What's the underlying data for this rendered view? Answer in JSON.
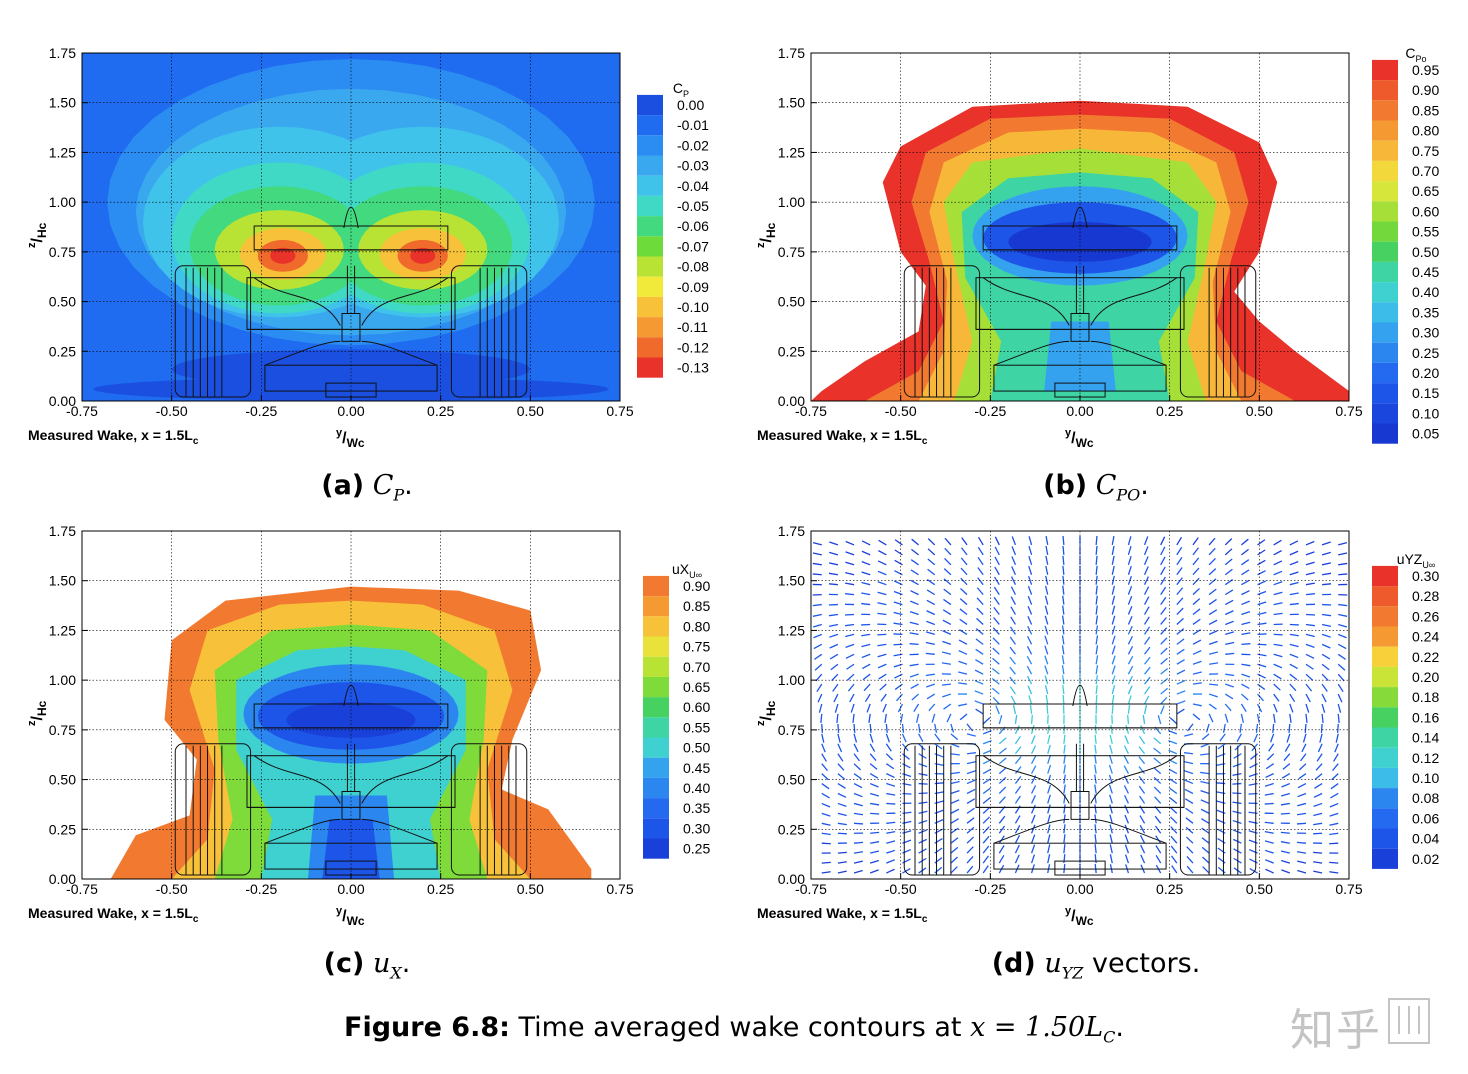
{
  "axes": {
    "x_ticks": [
      "-0.75",
      "-0.50",
      "-0.25",
      "0.00",
      "0.25",
      "0.50",
      "0.75"
    ],
    "y_ticks": [
      "0.00",
      "0.25",
      "0.50",
      "0.75",
      "1.00",
      "1.25",
      "1.50",
      "1.75"
    ],
    "xlabel_main": "y",
    "xlabel_sub": "Wc",
    "ylabel_main": "z",
    "ylabel_sub": "Hc",
    "note_main": "Measured Wake, x = 1.5L",
    "note_sub": "c"
  },
  "panels": [
    {
      "id": "a",
      "caption_label": "(a)",
      "caption_math": "C",
      "caption_math_sub": "P",
      "caption_suffix": "."
    },
    {
      "id": "b",
      "caption_label": "(b)",
      "caption_math": "C",
      "caption_math_sub": "PO",
      "caption_suffix": "."
    },
    {
      "id": "c",
      "caption_label": "(c)",
      "caption_math": "u",
      "caption_math_sub": "X",
      "caption_suffix": "."
    },
    {
      "id": "d",
      "caption_label": "(d)",
      "caption_math": "u",
      "caption_math_sub": "YZ",
      "caption_suffix": " vectors."
    }
  ],
  "figure_caption": {
    "label": "Figure 6.8:",
    "text": " Time averaged wake contours at ",
    "math": "x = 1.50L",
    "math_sub": "C",
    "suffix": "."
  },
  "watermark": "知乎",
  "chart_data": [
    {
      "type": "heatmap",
      "title": "C_P",
      "legend_title_main": "C",
      "legend_title_sub": "P",
      "xlim": [
        -0.75,
        0.75
      ],
      "ylim": [
        0,
        1.75
      ],
      "legend_levels": [
        "0.00",
        "-0.01",
        "-0.02",
        "-0.03",
        "-0.04",
        "-0.05",
        "-0.06",
        "-0.07",
        "-0.08",
        "-0.09",
        "-0.10",
        "-0.11",
        "-0.12",
        "-0.13"
      ],
      "legend_colors": [
        "#1a4fe0",
        "#1f6cf0",
        "#2b8cf2",
        "#3aa8ef",
        "#3fc3ea",
        "#3fd9c6",
        "#43d97f",
        "#6ddb3a",
        "#b9e334",
        "#f2ea3a",
        "#f7c23a",
        "#f59a33",
        "#f06a2c",
        "#e8322a"
      ],
      "features": [
        {
          "kind": "high",
          "y": -0.19,
          "z": 0.73,
          "value": -0.13
        },
        {
          "kind": "high",
          "y": 0.2,
          "z": 0.73,
          "value": -0.13
        },
        {
          "kind": "low",
          "y": 0.0,
          "z": 0.15,
          "value": 0.0
        }
      ]
    },
    {
      "type": "heatmap",
      "title": "C_PO",
      "legend_title_main": "C",
      "legend_title_sub": "Po",
      "xlim": [
        -0.75,
        0.75
      ],
      "ylim": [
        0,
        1.75
      ],
      "legend_levels": [
        "0.95",
        "0.90",
        "0.85",
        "0.80",
        "0.75",
        "0.70",
        "0.65",
        "0.60",
        "0.55",
        "0.50",
        "0.45",
        "0.40",
        "0.35",
        "0.30",
        "0.25",
        "0.20",
        "0.15",
        "0.10",
        "0.05"
      ],
      "legend_colors": [
        "#e8322a",
        "#ef5a2c",
        "#f27a30",
        "#f59a33",
        "#f7b83a",
        "#f2d83a",
        "#d6e63a",
        "#a6df38",
        "#72d83c",
        "#47d160",
        "#3ed4a3",
        "#3fd0d0",
        "#3cbce8",
        "#35a2ef",
        "#2c86f0",
        "#236af0",
        "#1c55e8",
        "#1a46dd",
        "#1838d2"
      ],
      "features": [
        {
          "kind": "low",
          "y": 0.0,
          "z": 0.8,
          "value": 0.05
        },
        {
          "kind": "freestream_boundary",
          "y": 0.0,
          "z": 1.5,
          "value": 1.0
        }
      ]
    },
    {
      "type": "heatmap",
      "title": "uX/U∞",
      "legend_title_main": "uX",
      "legend_title_sub": "U∞",
      "xlim": [
        -0.75,
        0.75
      ],
      "ylim": [
        0,
        1.75
      ],
      "legend_levels": [
        "0.90",
        "0.85",
        "0.80",
        "0.75",
        "0.70",
        "0.65",
        "0.60",
        "0.55",
        "0.50",
        "0.45",
        "0.40",
        "0.35",
        "0.30",
        "0.25"
      ],
      "legend_colors": [
        "#f27a30",
        "#f59a33",
        "#f7c23a",
        "#e9e23a",
        "#b9e334",
        "#7fdb3a",
        "#47d160",
        "#3ed4a3",
        "#3fd0d0",
        "#35a2ef",
        "#2c86f0",
        "#236af0",
        "#1c55e8",
        "#1a40da"
      ],
      "features": [
        {
          "kind": "low",
          "y": 0.0,
          "z": 0.8,
          "value": 0.25
        },
        {
          "kind": "low",
          "y": 0.0,
          "z": 0.1,
          "value": 0.25
        }
      ]
    },
    {
      "type": "heatmap",
      "title": "uYZ/U∞ vectors",
      "legend_title_main": "uYZ",
      "legend_title_sub": "U∞",
      "xlim": [
        -0.75,
        0.75
      ],
      "ylim": [
        0,
        1.75
      ],
      "legend_levels": [
        "0.30",
        "0.28",
        "0.26",
        "0.24",
        "0.22",
        "0.20",
        "0.18",
        "0.16",
        "0.14",
        "0.12",
        "0.10",
        "0.08",
        "0.06",
        "0.04",
        "0.02"
      ],
      "legend_colors": [
        "#e8322a",
        "#ef5a2c",
        "#f27a30",
        "#f59a33",
        "#f7d03a",
        "#c9e336",
        "#86da3a",
        "#47d160",
        "#3ed4a3",
        "#3fd0d0",
        "#3cbce8",
        "#2c86f0",
        "#236af0",
        "#1c55e8",
        "#1a40da"
      ],
      "features": [
        {
          "kind": "upwash_max",
          "y": 0.0,
          "z": 0.8,
          "value": 0.3
        }
      ]
    }
  ]
}
